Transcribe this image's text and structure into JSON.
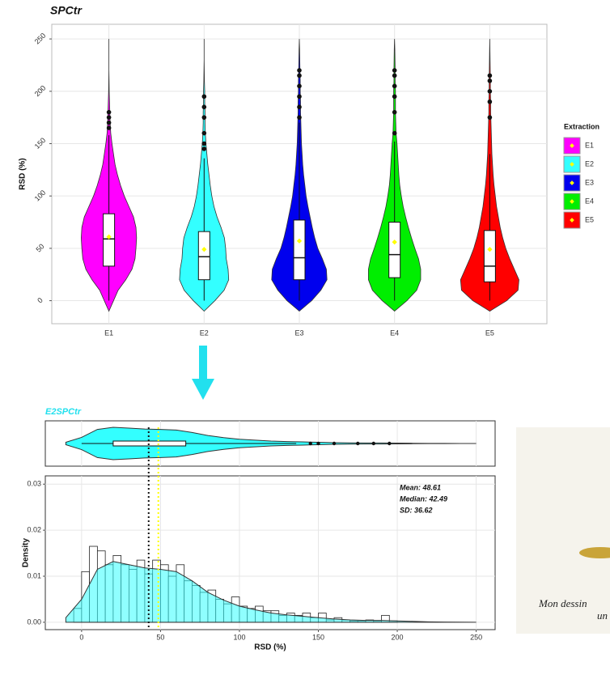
{
  "chart_data": [
    {
      "type": "violin",
      "title": "SPCtr",
      "y_label": "RSD (%)",
      "legend_title": "Extraction",
      "legend": "right",
      "grid": true,
      "categories": [
        "E1",
        "E2",
        "E3",
        "E4",
        "E5"
      ],
      "ylim": [
        -22,
        264
      ],
      "yticks": [
        0,
        50,
        100,
        150,
        200,
        250
      ],
      "mean_color": "#ffff00",
      "density_y": [
        -10,
        0,
        10,
        20,
        30,
        40,
        50,
        60,
        70,
        80,
        90,
        100,
        110,
        120,
        130,
        140,
        150,
        160,
        170,
        180,
        190,
        200,
        210,
        220,
        230,
        240,
        250
      ],
      "series": [
        {
          "name": "E1",
          "color": "#ff00ff",
          "density": [
            0,
            0.15,
            0.3,
            0.55,
            0.75,
            0.85,
            0.88,
            0.9,
            0.88,
            0.8,
            0.65,
            0.5,
            0.38,
            0.28,
            0.2,
            0.15,
            0.1,
            0.06,
            0.04,
            0.03,
            0.02,
            0.01,
            0.005,
            0,
            0,
            0,
            0
          ],
          "whisker_low": 0,
          "q1": 33,
          "median": 59,
          "q3": 83,
          "whisker_high": 158,
          "mean": 61,
          "outliers": [
            165,
            170,
            175,
            180
          ]
        },
        {
          "name": "E2",
          "color": "#33ffff",
          "density": [
            0,
            0.35,
            0.65,
            0.8,
            0.78,
            0.72,
            0.7,
            0.66,
            0.55,
            0.42,
            0.32,
            0.25,
            0.2,
            0.16,
            0.12,
            0.09,
            0.06,
            0.04,
            0.03,
            0.03,
            0.02,
            0.02,
            0.01,
            0.005,
            0,
            0,
            0
          ],
          "whisker_low": 0,
          "q1": 20,
          "median": 42,
          "q3": 66,
          "whisker_high": 136,
          "mean": 49,
          "outliers": [
            145,
            150,
            160,
            175,
            185,
            195
          ]
        },
        {
          "name": "E3",
          "color": "#0000ee",
          "density": [
            0,
            0.4,
            0.7,
            0.9,
            0.88,
            0.75,
            0.6,
            0.5,
            0.42,
            0.35,
            0.28,
            0.22,
            0.18,
            0.14,
            0.11,
            0.09,
            0.07,
            0.06,
            0.05,
            0.04,
            0.04,
            0.03,
            0.03,
            0.02,
            0.015,
            0.01,
            0
          ],
          "whisker_low": 0,
          "q1": 20,
          "median": 41,
          "q3": 77,
          "whisker_high": 170,
          "mean": 57,
          "outliers": [
            175,
            185,
            195,
            205,
            215,
            220
          ]
        },
        {
          "name": "E4",
          "color": "#00ee00",
          "density": [
            0,
            0.4,
            0.72,
            0.85,
            0.85,
            0.78,
            0.66,
            0.55,
            0.45,
            0.36,
            0.28,
            0.22,
            0.17,
            0.14,
            0.12,
            0.1,
            0.08,
            0.05,
            0.04,
            0.03,
            0.03,
            0.03,
            0.02,
            0.02,
            0.015,
            0.01,
            0
          ],
          "whisker_low": 0,
          "q1": 22,
          "median": 44,
          "q3": 75,
          "whisker_high": 152,
          "mean": 56,
          "outliers": [
            160,
            180,
            195,
            205,
            215,
            220
          ]
        },
        {
          "name": "E5",
          "color": "#ff0000",
          "density": [
            0,
            0.55,
            0.92,
            0.95,
            0.8,
            0.65,
            0.52,
            0.42,
            0.34,
            0.28,
            0.22,
            0.18,
            0.14,
            0.11,
            0.09,
            0.07,
            0.06,
            0.05,
            0.04,
            0.03,
            0.03,
            0.02,
            0.02,
            0.015,
            0.01,
            0.005,
            0
          ],
          "whisker_low": 0,
          "q1": 18,
          "median": 33,
          "q3": 67,
          "whisker_high": 140,
          "mean": 49,
          "outliers": [
            175,
            190,
            200,
            210,
            215
          ]
        }
      ]
    },
    {
      "type": "histogram",
      "title": "E2SPCtr",
      "title_color": "#22e0ee",
      "x_label": "RSD (%)",
      "y_label": "Density",
      "grid": true,
      "xlim": [
        -23,
        262
      ],
      "xticks": [
        0,
        50,
        100,
        150,
        200,
        250
      ],
      "ylim": [
        -0.0016,
        0.0318
      ],
      "yticks": [
        {
          "value": 0,
          "label": "0.00"
        },
        {
          "value": 0.01,
          "label": "0.01"
        },
        {
          "value": 0.02,
          "label": "0.02"
        },
        {
          "value": 0.03,
          "label": "0.03"
        }
      ],
      "color": "#33ffff",
      "bins": [
        -5,
        0,
        5,
        10,
        15,
        20,
        25,
        30,
        35,
        40,
        45,
        50,
        55,
        60,
        65,
        70,
        75,
        80,
        85,
        90,
        95,
        100,
        105,
        110,
        115,
        120,
        125,
        130,
        135,
        140,
        145,
        150,
        155,
        160,
        165,
        170,
        175,
        180,
        185,
        190,
        195,
        200
      ],
      "values": [
        0.003,
        0.011,
        0.0165,
        0.0155,
        0.0125,
        0.0145,
        0.0125,
        0.0115,
        0.0135,
        0.0105,
        0.0135,
        0.0125,
        0.01,
        0.0125,
        0.009,
        0.008,
        0.0065,
        0.007,
        0.005,
        0.004,
        0.0055,
        0.0035,
        0.003,
        0.0035,
        0.0025,
        0.0025,
        0.0015,
        0.002,
        0.0015,
        0.002,
        0.001,
        0.002,
        0.0005,
        0.001,
        0.0005,
        0.0003,
        0.0003,
        0.0005,
        0.0003,
        0.0015,
        0.0003
      ],
      "density_x": [
        -10,
        0,
        10,
        20,
        30,
        40,
        50,
        60,
        70,
        80,
        90,
        100,
        110,
        120,
        130,
        140,
        150,
        160,
        170,
        180,
        190,
        200,
        210,
        220,
        230,
        240,
        250
      ],
      "density": [
        0.001,
        0.005,
        0.0115,
        0.0132,
        0.0125,
        0.0118,
        0.0115,
        0.011,
        0.009,
        0.0065,
        0.0048,
        0.0035,
        0.0027,
        0.002,
        0.0016,
        0.0013,
        0.001,
        0.0007,
        0.0005,
        0.0004,
        0.0004,
        0.0003,
        0.0002,
        0.0001,
        5e-05,
        2e-05,
        0
      ],
      "median_line": 42.49,
      "mean_line": 48.61,
      "annotations": [
        "Mean: 48.61",
        "Median: 42.49",
        "SD: 36.62"
      ]
    }
  ],
  "image": {
    "caption_lines": [
      "Mon dessin",
      "un"
    ]
  }
}
